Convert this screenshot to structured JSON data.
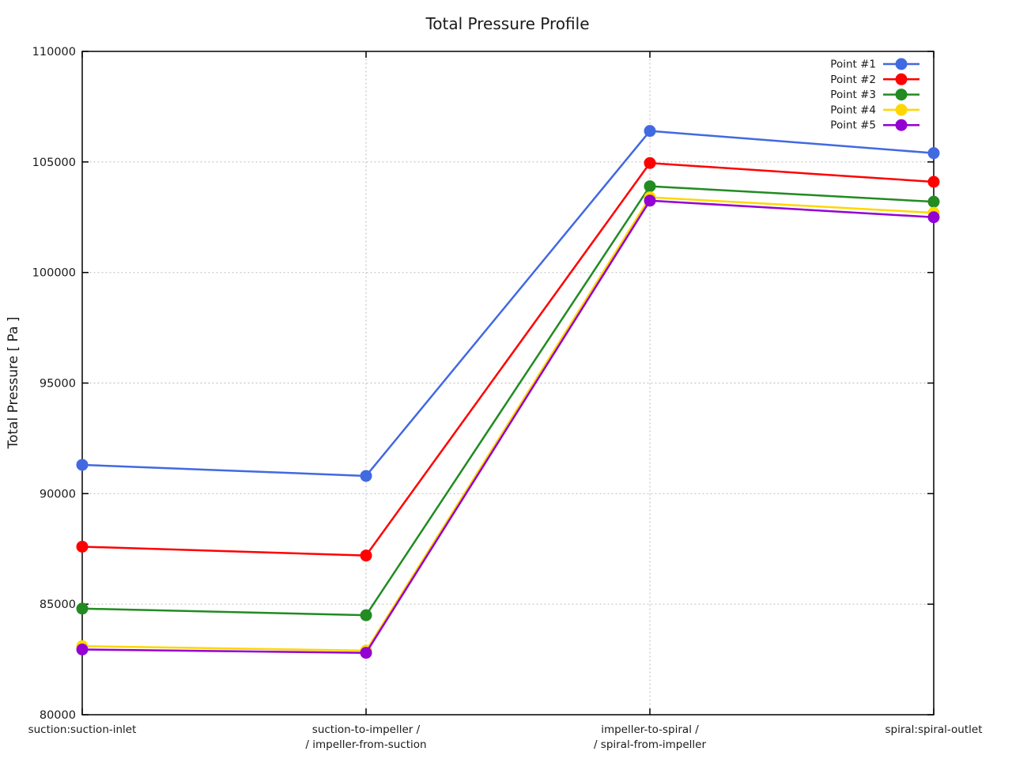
{
  "chart_data": {
    "type": "line",
    "title": "Total Pressure Profile",
    "ylabel": "Total Pressure [ Pa ]",
    "xlabel": "",
    "ylim": [
      80000,
      110000
    ],
    "yticks": [
      80000,
      85000,
      90000,
      95000,
      100000,
      105000,
      110000
    ],
    "ytick_labels": [
      "80000",
      "85000",
      "90000",
      "95000",
      "100000",
      "105000",
      "110000"
    ],
    "grid": "dotted",
    "legend_position": "top-right-inside",
    "categories": [
      [
        "suction:suction-inlet"
      ],
      [
        "suction-to-impeller /",
        "/ impeller-from-suction"
      ],
      [
        "impeller-to-spiral /",
        "/ spiral-from-impeller"
      ],
      [
        "spiral:spiral-outlet"
      ]
    ],
    "series": [
      {
        "name": "Point #1",
        "color": "#4169E1",
        "values": [
          91300,
          90800,
          106400,
          105400
        ]
      },
      {
        "name": "Point #2",
        "color": "#FF0000",
        "values": [
          87600,
          87200,
          104950,
          104100
        ]
      },
      {
        "name": "Point #3",
        "color": "#228B22",
        "values": [
          84800,
          84500,
          103900,
          103200
        ]
      },
      {
        "name": "Point #4",
        "color": "#FFD700",
        "values": [
          83100,
          82900,
          103400,
          102700
        ]
      },
      {
        "name": "Point #5",
        "color": "#9400D3",
        "values": [
          82950,
          82800,
          103250,
          102500
        ]
      }
    ],
    "colors": {
      "background": "#FFFFFF",
      "axis": "#000000",
      "grid": "#C4C4C4",
      "text": "#1A1A1A"
    }
  }
}
